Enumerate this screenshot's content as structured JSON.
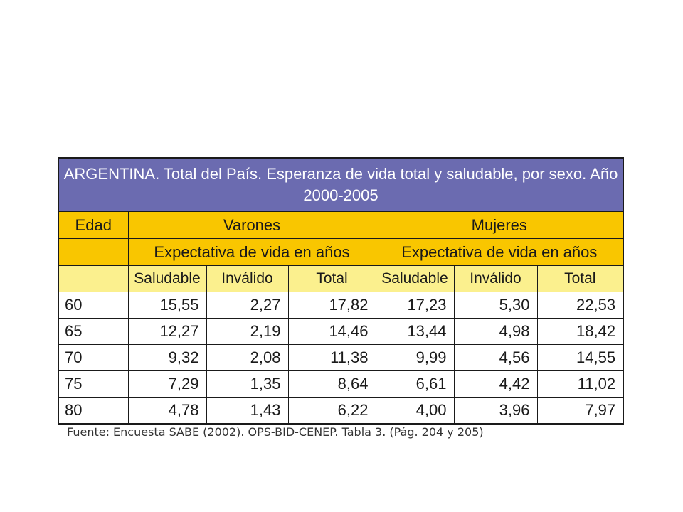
{
  "table": {
    "title": "ARGENTINA. Total del País. Esperanza de vida total y saludable, por sexo. Año 2000-2005",
    "age_header": "Edad",
    "groups": [
      {
        "label": "Varones",
        "sublabel": "Expectativa de vida en años"
      },
      {
        "label": "Mujeres",
        "sublabel": "Expectativa de vida en años"
      }
    ],
    "columns": [
      "Saludable",
      "Inválido",
      "Total",
      "Saludable",
      "Inválido",
      "Total"
    ],
    "rows": [
      {
        "age": "60",
        "values": [
          "15,55",
          "2,27",
          "17,82",
          "17,23",
          "5,30",
          "22,53"
        ]
      },
      {
        "age": "65",
        "values": [
          "12,27",
          "2,19",
          "14,46",
          "13,44",
          "4,98",
          "18,42"
        ]
      },
      {
        "age": "70",
        "values": [
          "9,32",
          "2,08",
          "11,38",
          "9,99",
          "4,56",
          "14,55"
        ]
      },
      {
        "age": "75",
        "values": [
          "7,29",
          "1,35",
          "8,64",
          "6,61",
          "4,42",
          "11,02"
        ]
      },
      {
        "age": "80",
        "values": [
          "4,78",
          "1,43",
          "6,22",
          "4,00",
          "3,96",
          "7,97"
        ]
      }
    ],
    "source": "Fuente: Encuesta SABE (2002). OPS-BID-CENEP. Tabla 3. (Pág. 204 y 205)"
  },
  "colors": {
    "title_bg": "#6b6bb0",
    "header_dark_bg": "#f9c600",
    "header_light_bg": "#fbf08e",
    "border": "#1a1a1a"
  }
}
